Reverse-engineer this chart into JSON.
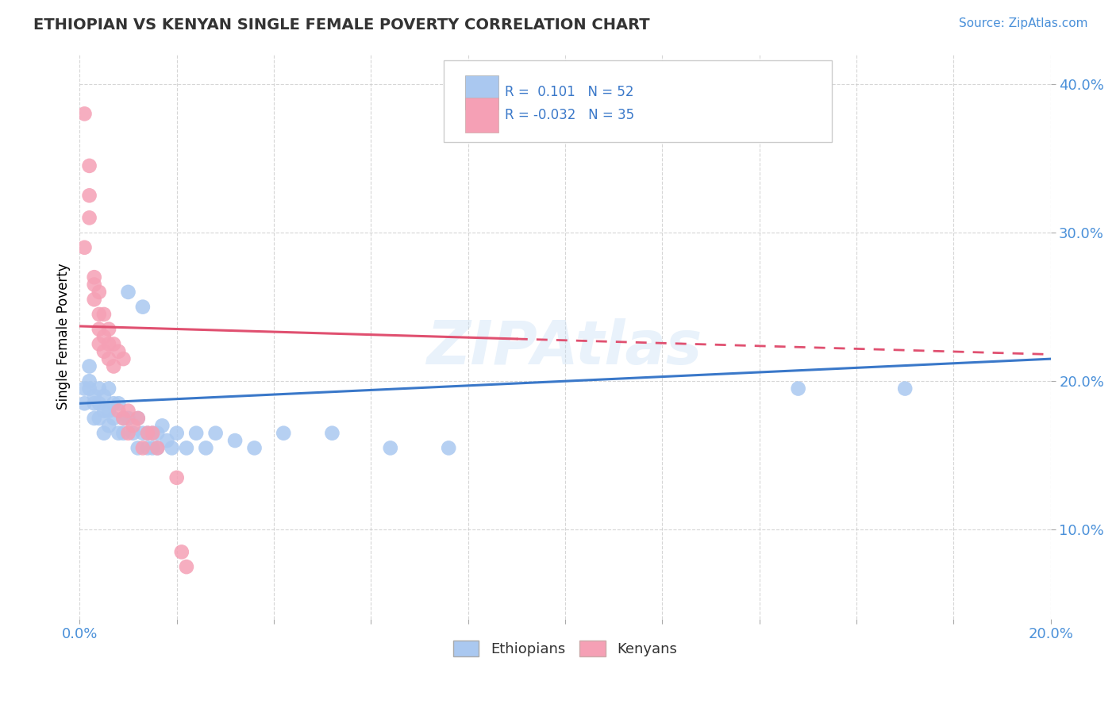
{
  "title": "ETHIOPIAN VS KENYAN SINGLE FEMALE POVERTY CORRELATION CHART",
  "source": "Source: ZipAtlas.com",
  "ylabel": "Single Female Poverty",
  "xlim": [
    0.0,
    0.2
  ],
  "ylim": [
    0.04,
    0.42
  ],
  "x_ticks": [
    0.0,
    0.02,
    0.04,
    0.06,
    0.08,
    0.1,
    0.12,
    0.14,
    0.16,
    0.18,
    0.2
  ],
  "y_ticks": [
    0.1,
    0.2,
    0.3,
    0.4
  ],
  "blue_R": 0.101,
  "blue_N": 52,
  "pink_R": -0.032,
  "pink_N": 35,
  "blue_color": "#aac8f0",
  "pink_color": "#f5a0b5",
  "blue_line_color": "#3a78c9",
  "pink_line_color": "#e05070",
  "watermark": "ZIPAtlas",
  "legend_label_blue": "Ethiopians",
  "legend_label_pink": "Kenyans",
  "blue_scatter": [
    [
      0.001,
      0.195
    ],
    [
      0.001,
      0.185
    ],
    [
      0.002,
      0.2
    ],
    [
      0.002,
      0.21
    ],
    [
      0.002,
      0.195
    ],
    [
      0.003,
      0.19
    ],
    [
      0.003,
      0.185
    ],
    [
      0.003,
      0.175
    ],
    [
      0.004,
      0.195
    ],
    [
      0.004,
      0.185
    ],
    [
      0.004,
      0.175
    ],
    [
      0.005,
      0.19
    ],
    [
      0.005,
      0.18
    ],
    [
      0.005,
      0.165
    ],
    [
      0.006,
      0.195
    ],
    [
      0.006,
      0.18
    ],
    [
      0.006,
      0.17
    ],
    [
      0.007,
      0.185
    ],
    [
      0.007,
      0.175
    ],
    [
      0.008,
      0.185
    ],
    [
      0.008,
      0.165
    ],
    [
      0.009,
      0.175
    ],
    [
      0.009,
      0.165
    ],
    [
      0.01,
      0.175
    ],
    [
      0.01,
      0.26
    ],
    [
      0.011,
      0.165
    ],
    [
      0.012,
      0.175
    ],
    [
      0.012,
      0.155
    ],
    [
      0.013,
      0.25
    ],
    [
      0.013,
      0.165
    ],
    [
      0.014,
      0.165
    ],
    [
      0.014,
      0.155
    ],
    [
      0.015,
      0.165
    ],
    [
      0.015,
      0.155
    ],
    [
      0.016,
      0.165
    ],
    [
      0.016,
      0.155
    ],
    [
      0.017,
      0.17
    ],
    [
      0.018,
      0.16
    ],
    [
      0.019,
      0.155
    ],
    [
      0.02,
      0.165
    ],
    [
      0.022,
      0.155
    ],
    [
      0.024,
      0.165
    ],
    [
      0.026,
      0.155
    ],
    [
      0.028,
      0.165
    ],
    [
      0.032,
      0.16
    ],
    [
      0.036,
      0.155
    ],
    [
      0.042,
      0.165
    ],
    [
      0.052,
      0.165
    ],
    [
      0.064,
      0.155
    ],
    [
      0.076,
      0.155
    ],
    [
      0.148,
      0.195
    ],
    [
      0.17,
      0.195
    ]
  ],
  "pink_scatter": [
    [
      0.001,
      0.38
    ],
    [
      0.001,
      0.29
    ],
    [
      0.002,
      0.345
    ],
    [
      0.002,
      0.325
    ],
    [
      0.002,
      0.31
    ],
    [
      0.003,
      0.265
    ],
    [
      0.003,
      0.255
    ],
    [
      0.003,
      0.27
    ],
    [
      0.004,
      0.26
    ],
    [
      0.004,
      0.245
    ],
    [
      0.004,
      0.235
    ],
    [
      0.004,
      0.225
    ],
    [
      0.005,
      0.245
    ],
    [
      0.005,
      0.23
    ],
    [
      0.005,
      0.22
    ],
    [
      0.006,
      0.235
    ],
    [
      0.006,
      0.225
    ],
    [
      0.006,
      0.215
    ],
    [
      0.007,
      0.225
    ],
    [
      0.007,
      0.21
    ],
    [
      0.008,
      0.22
    ],
    [
      0.008,
      0.18
    ],
    [
      0.009,
      0.215
    ],
    [
      0.009,
      0.175
    ],
    [
      0.01,
      0.18
    ],
    [
      0.01,
      0.165
    ],
    [
      0.011,
      0.17
    ],
    [
      0.012,
      0.175
    ],
    [
      0.013,
      0.155
    ],
    [
      0.014,
      0.165
    ],
    [
      0.015,
      0.165
    ],
    [
      0.016,
      0.155
    ],
    [
      0.02,
      0.135
    ],
    [
      0.021,
      0.085
    ],
    [
      0.022,
      0.075
    ]
  ]
}
